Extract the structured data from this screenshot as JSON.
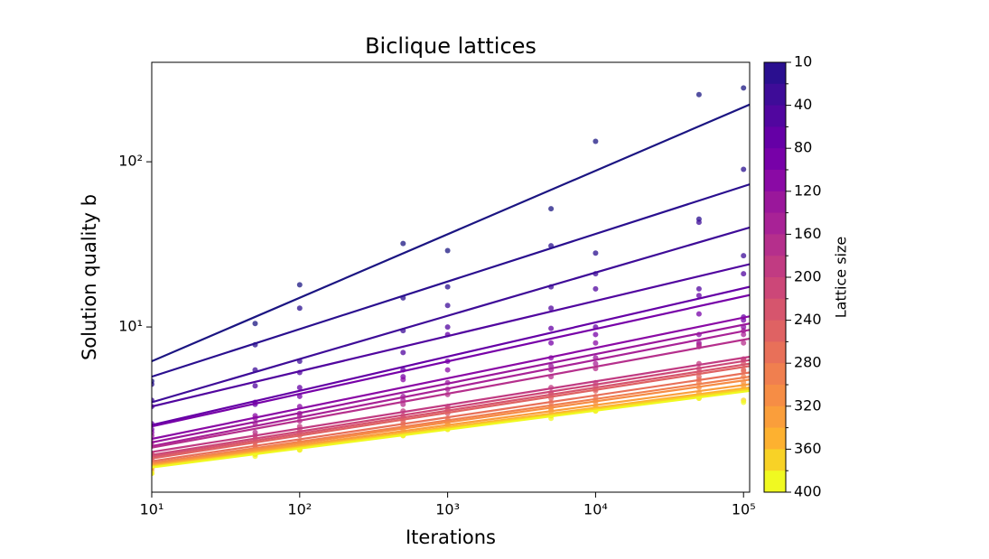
{
  "chart_data": {
    "type": "scatter",
    "title": "Biclique lattices",
    "x_label": "Iterations",
    "y_label": "Solution quality b",
    "log_x": true,
    "log_y": true,
    "xlim": [
      10,
      110000
    ],
    "ylim": [
      1,
      400
    ],
    "xticks": [
      {
        "value": 10,
        "label": "10¹"
      },
      {
        "value": 100,
        "label": "10²"
      },
      {
        "value": 1000,
        "label": "10³"
      },
      {
        "value": 10000,
        "label": "10⁴"
      },
      {
        "value": 100000,
        "label": "10⁵"
      }
    ],
    "yticks": [
      {
        "value": 10,
        "label": "10¹"
      },
      {
        "value": 100,
        "label": "10²"
      }
    ],
    "x": [
      10,
      50,
      100,
      500,
      1000,
      5000,
      10000,
      50000,
      100000
    ],
    "fit_x": [
      10,
      110000
    ],
    "series": [
      {
        "color": "#1b1582",
        "fit": [
          6.2,
          222
        ],
        "values": [
          4.7,
          10.5,
          18,
          32,
          29,
          52,
          133,
          255,
          280
        ]
      },
      {
        "color": "#2a0f8f",
        "fit": [
          5.0,
          73
        ],
        "values": [
          4.5,
          7.8,
          13,
          15,
          17.5,
          31,
          28,
          45,
          90
        ]
      },
      {
        "color": "#3e0c98",
        "fit": [
          3.5,
          40
        ],
        "values": [
          3.6,
          5.5,
          6.2,
          9.5,
          13.5,
          17.5,
          21,
          43,
          27
        ]
      },
      {
        "color": "#51069f",
        "fit": [
          3.3,
          24
        ],
        "values": [
          3.3,
          4.4,
          5.3,
          7,
          10,
          13,
          17,
          17,
          21
        ]
      },
      {
        "color": "#6500a6",
        "fit": [
          2.55,
          17.5
        ],
        "values": [
          2.6,
          3.4,
          4.3,
          5.5,
          9.0,
          9.8,
          10.0,
          15.5,
          11.5
        ]
      },
      {
        "color": "#7701a8",
        "fit": [
          2.5,
          15.6
        ],
        "values": [
          2.4,
          3.5,
          3.8,
          5.0,
          6.2,
          8.0,
          9.0,
          12,
          11
        ]
      },
      {
        "color": "#8a0aa5",
        "fit": [
          2.1,
          11.6
        ],
        "values": [
          2.3,
          2.9,
          3.3,
          4.8,
          5.5,
          6.5,
          8.0,
          9.0,
          10.0
        ]
      },
      {
        "color": "#9a179b",
        "fit": [
          2.0,
          10.5
        ],
        "values": [
          2.2,
          2.8,
          3.0,
          3.8,
          4.6,
          5.8,
          6.5,
          8.0,
          9.5
        ]
      },
      {
        "color": "#a82296",
        "fit": [
          1.9,
          9.6
        ],
        "values": [
          2.0,
          2.6,
          2.9,
          3.6,
          4.2,
          5.5,
          6.0,
          7.8,
          9.0
        ]
      },
      {
        "color": "#b52f8c",
        "fit": [
          1.86,
          8.5
        ],
        "values": [
          1.9,
          2.3,
          2.7,
          3.4,
          3.9,
          5.0,
          5.6,
          7.6,
          8.0
        ]
      },
      {
        "color": "#c13b82",
        "fit": [
          1.75,
          6.6
        ],
        "values": [
          1.7,
          2.2,
          2.5,
          3.1,
          3.3,
          4.3,
          4.6,
          6.0,
          6.4
        ]
      },
      {
        "color": "#cc4778",
        "fit": [
          1.68,
          6.3
        ],
        "values": [
          1.6,
          2.1,
          2.4,
          2.9,
          3.2,
          4.0,
          4.4,
          5.6,
          6.3
        ]
      },
      {
        "color": "#d6556d",
        "fit": [
          1.64,
          6.0
        ],
        "values": [
          1.7,
          2.0,
          2.3,
          2.8,
          3.0,
          3.9,
          4.2,
          5.3,
          6.0
        ]
      },
      {
        "color": "#df6263",
        "fit": [
          1.6,
          5.8
        ],
        "values": [
          1.6,
          1.9,
          2.2,
          2.7,
          3.1,
          3.7,
          4.1,
          5.0,
          5.5
        ]
      },
      {
        "color": "#e87059",
        "fit": [
          1.54,
          5.3
        ],
        "values": [
          1.5,
          1.9,
          2.0,
          2.6,
          2.8,
          3.5,
          3.8,
          4.8,
          5.4
        ]
      },
      {
        "color": "#f07f4f",
        "fit": [
          1.5,
          5.0
        ],
        "values": [
          1.45,
          1.8,
          2.0,
          2.5,
          2.7,
          3.3,
          3.6,
          4.6,
          5.0
        ]
      },
      {
        "color": "#f68d45",
        "fit": [
          1.48,
          4.8
        ],
        "values": [
          1.4,
          1.8,
          2.0,
          2.4,
          2.6,
          3.2,
          3.5,
          4.3,
          4.6
        ]
      },
      {
        "color": "#fa9e3b",
        "fit": [
          1.46,
          4.5
        ],
        "values": [
          1.4,
          1.7,
          1.9,
          2.3,
          2.6,
          3.1,
          3.3,
          4.0,
          4.4
        ]
      },
      {
        "color": "#fdb130",
        "fit": [
          1.44,
          4.3
        ],
        "values": [
          1.35,
          1.7,
          1.9,
          2.3,
          2.5,
          2.9,
          3.2,
          3.8,
          4.2
        ]
      },
      {
        "color": "#f8d226",
        "fit": [
          1.43,
          4.2
        ],
        "values": [
          1.3,
          1.7,
          1.8,
          2.2,
          2.4,
          2.9,
          3.1,
          3.7,
          3.6
        ]
      },
      {
        "color": "#f0f921",
        "fit": [
          1.41,
          4.1
        ],
        "values": [
          1.3,
          1.65,
          1.8,
          2.2,
          2.4,
          2.8,
          3.1,
          3.7,
          3.5
        ]
      }
    ],
    "colorbar": {
      "label": "Lattice size",
      "levels": [
        10,
        20,
        40,
        60,
        80,
        100,
        120,
        140,
        160,
        180,
        200,
        220,
        240,
        260,
        280,
        300,
        320,
        340,
        360,
        380,
        400
      ],
      "ticks": [
        10,
        40,
        80,
        120,
        160,
        200,
        240,
        280,
        320,
        360,
        400
      ]
    }
  }
}
